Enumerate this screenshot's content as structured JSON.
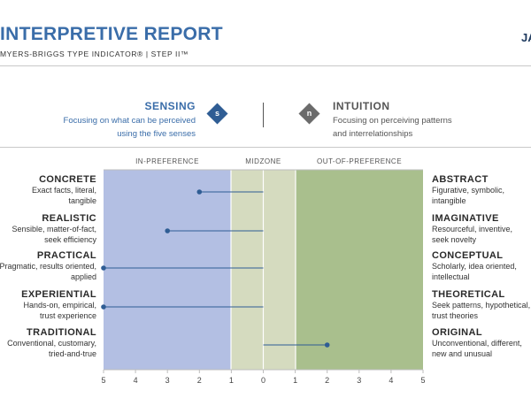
{
  "header": {
    "title": "INTERPRETIVE REPORT",
    "subtitle": "MYERS-BRIGGS TYPE INDICATOR®  |  STEP II™",
    "date_fragment": "JA"
  },
  "preferences": {
    "left": {
      "name": "SENSING",
      "letter": "s",
      "color": "#2f5d94",
      "desc_line1": "Focusing on what can be perceived",
      "desc_line2": "using the five senses"
    },
    "right": {
      "name": "INTUITION",
      "letter": "n",
      "color": "#6b6b6b",
      "desc_line1": "Focusing on perceiving patterns",
      "desc_line2": "and interrelationships"
    }
  },
  "zones": {
    "in_preference": "IN-PREFERENCE",
    "midzone": "MIDZONE",
    "out_of_preference": "OUT-OF-PREFERENCE"
  },
  "colors": {
    "in_preference": "#b3bfe3",
    "midzone": "#d5dbbf",
    "out_of_preference": "#a9bf8d",
    "marker": "#2f5d94",
    "title": "#3a6da9"
  },
  "scale_ticks": [
    "5",
    "4",
    "3",
    "2",
    "1",
    "0",
    "1",
    "2",
    "3",
    "4",
    "5"
  ],
  "facets": [
    {
      "left_name": "CONCRETE",
      "left_desc1": "Exact facts, literal,",
      "left_desc2": "tangible",
      "right_name": "ABSTRACT",
      "right_desc1": "Figurative, symbolic,",
      "right_desc2": "intangible",
      "pole": "left",
      "score": 2
    },
    {
      "left_name": "REALISTIC",
      "left_desc1": "Sensible, matter-of-fact,",
      "left_desc2": "seek efficiency",
      "right_name": "IMAGINATIVE",
      "right_desc1": "Resourceful, inventive,",
      "right_desc2": "seek novelty",
      "pole": "left",
      "score": 3
    },
    {
      "left_name": "PRACTICAL",
      "left_desc1": "Pragmatic, results oriented,",
      "left_desc2": "applied",
      "right_name": "CONCEPTUAL",
      "right_desc1": "Scholarly, idea oriented,",
      "right_desc2": "intellectual",
      "pole": "left",
      "score": 5
    },
    {
      "left_name": "EXPERIENTIAL",
      "left_desc1": "Hands-on, empirical,",
      "left_desc2": "trust experience",
      "right_name": "THEORETICAL",
      "right_desc1": "Seek patterns, hypothetical,",
      "right_desc2": "trust theories",
      "pole": "left",
      "score": 5
    },
    {
      "left_name": "TRADITIONAL",
      "left_desc1": "Conventional, customary,",
      "left_desc2": "tried-and-true",
      "right_name": "ORIGINAL",
      "right_desc1": "Unconventional, different,",
      "right_desc2": "new and unusual",
      "pole": "right",
      "score": 2
    }
  ]
}
